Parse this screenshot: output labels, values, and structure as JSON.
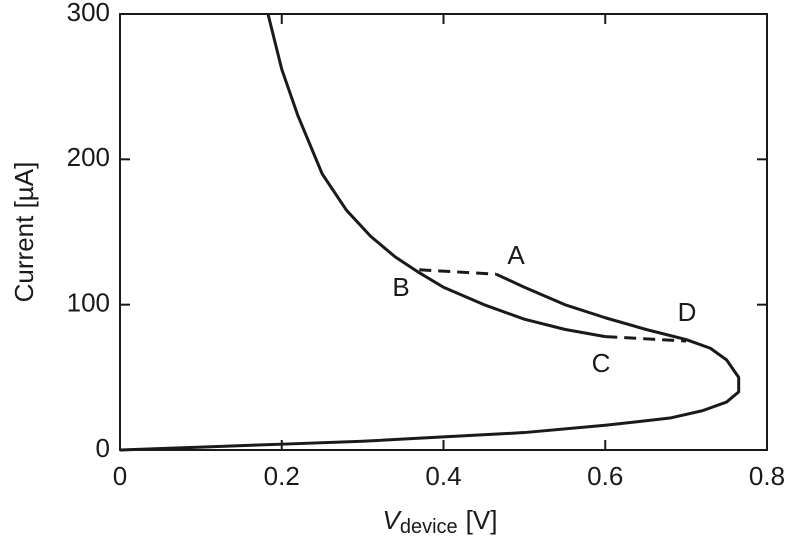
{
  "chart_data": {
    "type": "line",
    "xlabel_symbol": "V",
    "xlabel_subscript": "device",
    "xlabel_unit": "[V]",
    "ylabel": "Current [µA]",
    "xlim": [
      0,
      0.8
    ],
    "xticks": [
      0,
      0.2,
      0.4,
      0.6,
      0.8
    ],
    "ylim": [
      0,
      300
    ],
    "yticks": [
      0,
      100,
      200,
      300
    ],
    "grid": false,
    "series": [
      {
        "color": "#1a1a1a",
        "dashed": false,
        "x": [
          0.183,
          0.2,
          0.22,
          0.25,
          0.28,
          0.31,
          0.34,
          0.37,
          0.4,
          0.45,
          0.5,
          0.55,
          0.6
        ],
        "values": [
          300,
          262,
          230,
          190,
          165,
          147,
          133,
          122,
          112,
          100,
          90,
          83,
          78
        ]
      },
      {
        "color": "#1a1a1a",
        "dashed": false,
        "x": [
          0.465,
          0.5,
          0.55,
          0.6,
          0.65,
          0.7,
          0.73,
          0.75,
          0.765,
          0.765,
          0.75,
          0.72,
          0.68,
          0.6,
          0.5,
          0.4,
          0.3,
          0.2,
          0.1,
          0
        ],
        "values": [
          121,
          112,
          100,
          91,
          83,
          76,
          70,
          62,
          50,
          40,
          33,
          27,
          22,
          17,
          12,
          9,
          6,
          4,
          2,
          0
        ]
      },
      {
        "color": "#1a1a1a",
        "dashed": true,
        "x": [
          0.37,
          0.465
        ],
        "values": [
          124,
          121
        ]
      },
      {
        "color": "#1a1a1a",
        "dashed": true,
        "x": [
          0.6,
          0.7
        ],
        "values": [
          78,
          75
        ]
      }
    ],
    "annotations": [
      "A",
      "B",
      "C",
      "D"
    ]
  }
}
